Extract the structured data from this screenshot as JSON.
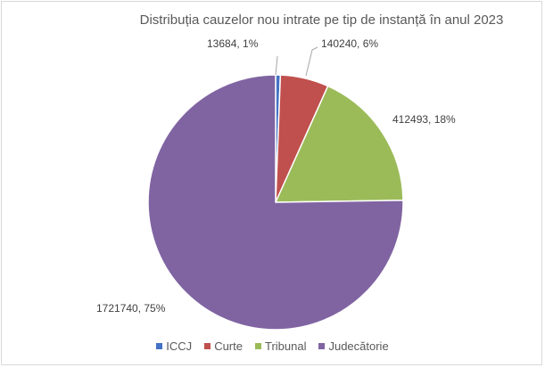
{
  "chart_data": {
    "type": "pie",
    "title": "Distribuția cauzelor nou intrate pe tip de instanță în anul 2023",
    "categories": [
      "ICCJ",
      "Curte",
      "Tribunal",
      "Judecătorie"
    ],
    "values": [
      13684,
      140240,
      412493,
      1721740
    ],
    "percent_labels": [
      "1%",
      "6%",
      "18%",
      "75%"
    ],
    "data_labels": [
      "13684, 1%",
      "140240, 6%",
      "412493, 18%",
      "1721740, 75%"
    ],
    "colors": [
      "#4472c4",
      "#c0504d",
      "#9bbb59",
      "#8064a2"
    ],
    "legend_position": "bottom"
  }
}
